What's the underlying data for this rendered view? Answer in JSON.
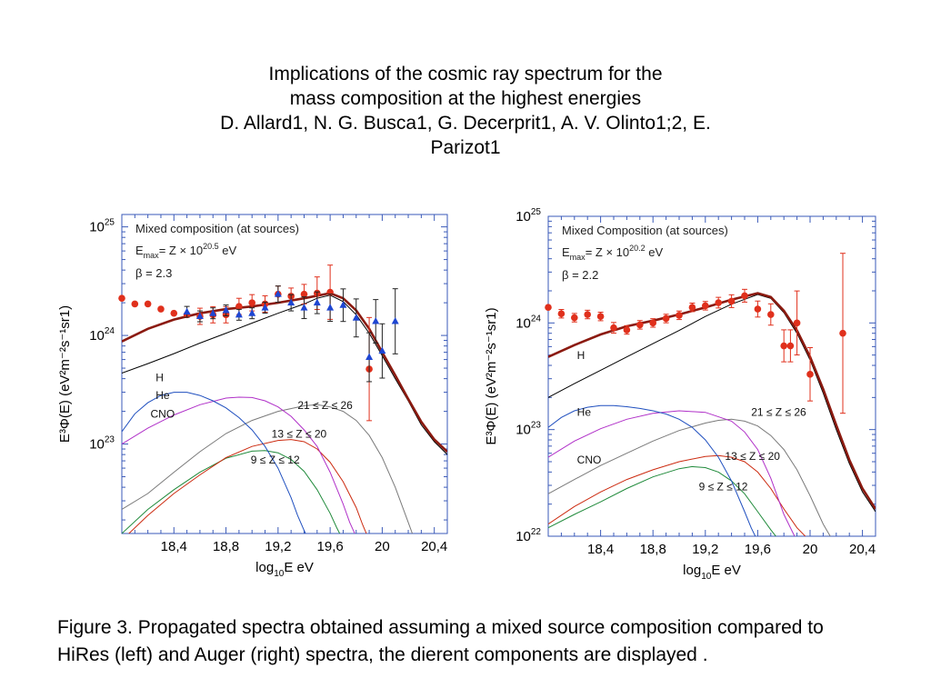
{
  "title": {
    "line1": "Implications of the cosmic ray spectrum for the",
    "line2": "mass composition at the highest energies",
    "line3": "D. Allard1, N. G. Busca1, G. Decerprit1, A. V. Olinto1;2, E.",
    "line4": "Parizot1"
  },
  "caption": "Figure 3. Propagated spectra obtained assuming a mixed source composition compared to HiRes (left) and Auger (right) spectra, the dierent components are displayed .",
  "colors": {
    "total": "#8b1a10",
    "data_red": "#e0301c",
    "data_blue": "#1e46d2",
    "H": "#000000",
    "He": "#1f4fbf",
    "CNO": "#b030c8",
    "Fe": "#7a7a7a",
    "Si": "#cc2a0f",
    "Mg": "#1f8a3a",
    "axis": "#3a5ab8"
  },
  "chart_data": [
    {
      "type": "line",
      "text": {
        "legend1": "Mixed composition (at sources)",
        "emax_prefix": "E",
        "emax_sub": "max",
        "emax_rest": "= Z × 10",
        "emax_exp": "20.5",
        "emax_unit": " eV",
        "beta": "β = 2.3",
        "ylabel": "E³Φ(E) (eV²m⁻²s⁻¹sr1)",
        "xlabel_a": "log",
        "xlabel_sub": "10",
        "xlabel_b": "E eV"
      },
      "xlim": [
        18.0,
        20.5
      ],
      "ylog": true,
      "ylim": [
        1.5e+22,
        1.3e+25
      ],
      "xticks": [
        18.4,
        18.8,
        19.2,
        19.6,
        20.0,
        20.4
      ],
      "xtick_labels": [
        "18,4",
        "18,8",
        "19,2",
        "19,6",
        "20",
        "20,4"
      ],
      "yticks": [
        {
          "base": "10",
          "exp": "23",
          "value": 1e+23
        },
        {
          "base": "10",
          "exp": "24",
          "value": 1e+24
        },
        {
          "base": "10",
          "exp": "25",
          "value": 1e+25
        }
      ],
      "labels": [
        {
          "text": "H",
          "x": 18.26,
          "y": 3.8e+23
        },
        {
          "text": "He",
          "x": 18.26,
          "y": 2.6e+23
        },
        {
          "text": "CNO",
          "x": 18.22,
          "y": 1.75e+23
        },
        {
          "text": "21 ≤ Z ≤ 26",
          "x": 19.35,
          "y": 2.1e+23
        },
        {
          "text": "13 ≤ Z ≤ 20",
          "x": 19.15,
          "y": 1.15e+23
        },
        {
          "text": "9 ≤ Z ≤ 12",
          "x": 18.99,
          "y": 6.6e+22
        }
      ],
      "series": [
        {
          "key": "total",
          "x": [
            18.0,
            18.2,
            18.4,
            18.6,
            18.8,
            19.0,
            19.2,
            19.4,
            19.6,
            19.7,
            19.8,
            19.9,
            20.0,
            20.1,
            20.2,
            20.3,
            20.4,
            20.5
          ],
          "y": [
            8.8e+23,
            1.15e+24,
            1.4e+24,
            1.6e+24,
            1.75e+24,
            1.85e+24,
            2e+24,
            2.2e+24,
            2.45e+24,
            2.2e+24,
            1.7e+24,
            1.15e+24,
            7e+23,
            4.3e+23,
            2.6e+23,
            1.6e+23,
            1.1e+23,
            8.5e+22
          ]
        },
        {
          "key": "H",
          "x": [
            18.0,
            18.2,
            18.4,
            18.6,
            18.8,
            19.0,
            19.2,
            19.4,
            19.5,
            19.6,
            19.7,
            19.8,
            19.9,
            20.0,
            20.1,
            20.2,
            20.3,
            20.4,
            20.5
          ],
          "y": [
            4.5e+23,
            5.5e+23,
            6.8e+23,
            8.5e+23,
            1.05e+24,
            1.3e+24,
            1.6e+24,
            1.95e+24,
            2.2e+24,
            2.35e+24,
            2.05e+24,
            1.55e+24,
            1.05e+24,
            6.5e+23,
            4e+23,
            2.5e+23,
            1.5e+23,
            1.05e+23,
            8e+22
          ]
        },
        {
          "key": "He",
          "x": [
            18.0,
            18.1,
            18.2,
            18.3,
            18.4,
            18.5,
            18.6,
            18.7,
            18.8,
            18.9,
            19.0,
            19.1,
            19.2,
            19.3,
            19.35,
            19.4,
            19.45
          ],
          "y": [
            1.3e+23,
            1.9e+23,
            2.4e+23,
            2.8e+23,
            3e+23,
            3e+23,
            2.8e+23,
            2.5e+23,
            2.15e+23,
            1.75e+23,
            1.35e+23,
            9.5e+22,
            6e+22,
            3.2e+22,
            2.2e+22,
            1.6e+22,
            1.2e+22
          ]
        },
        {
          "key": "CNO",
          "x": [
            18.0,
            18.2,
            18.4,
            18.6,
            18.8,
            18.9,
            19.0,
            19.1,
            19.2,
            19.3,
            19.4,
            19.5,
            19.6,
            19.7,
            19.75,
            19.8
          ],
          "y": [
            1e+23,
            1.4e+23,
            1.85e+23,
            2.3e+23,
            2.65e+23,
            2.7e+23,
            2.68e+23,
            2.5e+23,
            2.2e+23,
            1.8e+23,
            1.35e+23,
            9.5e+22,
            5.5e+22,
            2.8e+22,
            1.9e+22,
            1.4e+22
          ]
        },
        {
          "key": "Fe",
          "x": [
            18.0,
            18.2,
            18.4,
            18.6,
            18.8,
            19.0,
            19.2,
            19.4,
            19.5,
            19.6,
            19.7,
            19.8,
            19.9,
            20.0,
            20.1,
            20.2,
            20.25
          ],
          "y": [
            2.5e+22,
            3.5e+22,
            5.5e+22,
            8.5e+22,
            1.25e+23,
            1.65e+23,
            2e+23,
            2.25e+23,
            2.3e+23,
            2.2e+23,
            2e+23,
            1.65e+23,
            1.2e+23,
            7.5e+22,
            4e+22,
            1.9e+22,
            1.3e+22
          ]
        },
        {
          "key": "Si",
          "x": [
            18.0,
            18.2,
            18.4,
            18.6,
            18.8,
            19.0,
            19.2,
            19.3,
            19.4,
            19.5,
            19.6,
            19.7,
            19.8,
            19.85,
            19.9
          ],
          "y": [
            1.3e+22,
            2.2e+22,
            3.5e+22,
            5.2e+22,
            7.5e+22,
            9.5e+22,
            1.08e+23,
            1.1e+23,
            1.05e+23,
            9e+22,
            6.8e+22,
            4.5e+22,
            2.6e+22,
            1.8e+22,
            1.3e+22
          ]
        },
        {
          "key": "Mg",
          "x": [
            18.0,
            18.2,
            18.4,
            18.6,
            18.8,
            19.0,
            19.1,
            19.2,
            19.3,
            19.4,
            19.5,
            19.6,
            19.65,
            19.7
          ],
          "y": [
            1.5e+22,
            2.5e+22,
            3.8e+22,
            5.5e+22,
            7.4e+22,
            8.6e+22,
            8.7e+22,
            8.3e+22,
            7.2e+22,
            5.6e+22,
            3.8e+22,
            2.3e+22,
            1.7e+22,
            1.3e+22
          ]
        }
      ],
      "points_red": {
        "x": [
          18.0,
          18.1,
          18.2,
          18.3,
          18.4,
          18.5,
          18.6,
          18.7,
          18.8,
          18.9,
          19.0,
          19.1,
          19.2,
          19.3,
          19.4,
          19.5,
          19.6,
          19.9
        ],
        "y": [
          2.2e+24,
          1.95e+24,
          1.95e+24,
          1.75e+24,
          1.6e+24,
          1.55e+24,
          1.5e+24,
          1.55e+24,
          1.55e+24,
          1.85e+24,
          2e+24,
          1.95e+24,
          2.4e+24,
          2.3e+24,
          2.4e+24,
          2.45e+24,
          2.5e+24,
          4.9e+23
        ],
        "err": [
          0,
          0,
          0,
          0,
          0,
          0,
          0.15,
          0.15,
          0.15,
          0.15,
          0.15,
          0.15,
          0.15,
          0.15,
          0.18,
          0.3,
          0.5,
          0.95
        ]
      },
      "points_blue": {
        "x": [
          18.5,
          18.6,
          18.7,
          18.8,
          18.9,
          19.0,
          19.1,
          19.2,
          19.3,
          19.4,
          19.5,
          19.6,
          19.7,
          19.8,
          19.9,
          19.95,
          20.0,
          20.1
        ],
        "y": [
          1.65e+24,
          1.5e+24,
          1.6e+24,
          1.7e+24,
          1.55e+24,
          1.6e+24,
          1.8e+24,
          2.4e+24,
          2e+24,
          1.8e+24,
          2e+24,
          1.8e+24,
          1.9e+24,
          1.45e+24,
          6.3e+23,
          1.35e+24,
          7.2e+23,
          1.35e+24
        ],
        "err": [
          0.1,
          0.1,
          0.1,
          0.1,
          0.1,
          0.1,
          0.1,
          0.15,
          0.15,
          0.2,
          0.2,
          0.25,
          0.3,
          0.35,
          0.45,
          0.4,
          0.5,
          0.6
        ]
      }
    },
    {
      "type": "line",
      "text": {
        "legend1": "Mixed Composition (at sources)",
        "emax_prefix": "E",
        "emax_sub": "max",
        "emax_rest": "= Z × 10",
        "emax_exp": "20.2",
        "emax_unit": " eV",
        "beta": "β = 2.2",
        "ylabel": "E³Φ(E) (eV²m⁻²s⁻¹sr1)",
        "xlabel_a": "log",
        "xlabel_sub": "10",
        "xlabel_b": "E eV"
      },
      "xlim": [
        18.0,
        20.5
      ],
      "ylog": true,
      "ylim": [
        1e+22,
        1e+25
      ],
      "xticks": [
        18.4,
        18.8,
        19.2,
        19.6,
        20.0,
        20.4
      ],
      "xtick_labels": [
        "18,4",
        "18,8",
        "19,2",
        "19,6",
        "20",
        "20,4"
      ],
      "yticks": [
        {
          "base": "10",
          "exp": "22",
          "value": 1e+22
        },
        {
          "base": "10",
          "exp": "23",
          "value": 1e+23
        },
        {
          "base": "10",
          "exp": "24",
          "value": 1e+24
        },
        {
          "base": "10",
          "exp": "25",
          "value": 1e+25
        }
      ],
      "labels": [
        {
          "text": "H",
          "x": 18.22,
          "y": 4.6e+23
        },
        {
          "text": "He",
          "x": 18.22,
          "y": 1.35e+23
        },
        {
          "text": "CNO",
          "x": 18.22,
          "y": 4.8e+22
        },
        {
          "text": "21 ≤ Z ≤ 26",
          "x": 19.55,
          "y": 1.35e+23
        },
        {
          "text": "13 ≤ Z ≤ 20",
          "x": 19.35,
          "y": 5.2e+22
        },
        {
          "text": "9 ≤ Z ≤ 12",
          "x": 19.15,
          "y": 2.7e+22
        }
      ],
      "series": [
        {
          "key": "total",
          "x": [
            18.0,
            18.2,
            18.4,
            18.6,
            18.8,
            19.0,
            19.2,
            19.4,
            19.6,
            19.7,
            19.8,
            19.9,
            20.0,
            20.1,
            20.2,
            20.3,
            20.4,
            20.5
          ],
          "y": [
            4.8e+23,
            6.2e+23,
            7.8e+23,
            9.3e+23,
            1.05e+24,
            1.2e+24,
            1.4e+24,
            1.65e+24,
            1.9e+24,
            1.75e+24,
            1.3e+24,
            8.5e+23,
            4.8e+23,
            2.4e+23,
            1.1e+23,
            5.2e+22,
            2.8e+22,
            1.8e+22
          ]
        },
        {
          "key": "H",
          "x": [
            18.0,
            18.2,
            18.4,
            18.6,
            18.8,
            19.0,
            19.2,
            19.4,
            19.6,
            19.7,
            19.8,
            19.9,
            20.0,
            20.1,
            20.2,
            20.3,
            20.4,
            20.5
          ],
          "y": [
            2e+23,
            2.7e+23,
            3.6e+23,
            4.8e+23,
            6.4e+23,
            8.5e+23,
            1.15e+24,
            1.5e+24,
            1.85e+24,
            1.7e+24,
            1.25e+24,
            8e+23,
            4.5e+23,
            2.2e+23,
            1e+23,
            4.8e+22,
            2.6e+22,
            1.7e+22
          ]
        },
        {
          "key": "He",
          "x": [
            18.0,
            18.1,
            18.2,
            18.3,
            18.4,
            18.5,
            18.6,
            18.7,
            18.8,
            18.9,
            19.0,
            19.1,
            19.2,
            19.3,
            19.4,
            19.5,
            19.55,
            19.6
          ],
          "y": [
            1.05e+23,
            1.3e+23,
            1.5e+23,
            1.62e+23,
            1.68e+23,
            1.68e+23,
            1.64e+23,
            1.58e+23,
            1.5e+23,
            1.4e+23,
            1.25e+23,
            1.05e+23,
            8e+22,
            5.5e+22,
            3.3e+22,
            1.7e+22,
            1.2e+22,
            9e+21
          ]
        },
        {
          "key": "CNO",
          "x": [
            18.0,
            18.2,
            18.4,
            18.6,
            18.8,
            19.0,
            19.2,
            19.4,
            19.5,
            19.6,
            19.7,
            19.8,
            19.9
          ],
          "y": [
            5.5e+22,
            7.8e+22,
            1.02e+23,
            1.25e+23,
            1.42e+23,
            1.5e+23,
            1.45e+23,
            1.2e+23,
            9.5e+22,
            6.5e+22,
            3.5e+22,
            1.6e+22,
            9e+21
          ]
        },
        {
          "key": "Fe",
          "x": [
            18.0,
            18.2,
            18.4,
            18.6,
            18.8,
            19.0,
            19.2,
            19.3,
            19.4,
            19.5,
            19.6,
            19.7,
            19.8,
            19.9,
            20.0,
            20.1,
            20.2
          ],
          "y": [
            2.5e+22,
            3.4e+22,
            4.6e+22,
            6e+22,
            7.8e+22,
            9.8e+22,
            1.15e+23,
            1.22e+23,
            1.25e+23,
            1.2e+23,
            1.08e+23,
            8.8e+22,
            6.5e+22,
            4.2e+22,
            2.4e+22,
            1.3e+22,
            8e+21
          ]
        },
        {
          "key": "Si",
          "x": [
            18.0,
            18.2,
            18.4,
            18.6,
            18.8,
            19.0,
            19.2,
            19.3,
            19.4,
            19.5,
            19.6,
            19.7,
            19.8,
            19.9,
            20.0
          ],
          "y": [
            1.3e+22,
            1.9e+22,
            2.6e+22,
            3.4e+22,
            4.2e+22,
            5e+22,
            5.6e+22,
            5.7e+22,
            5.5e+22,
            5e+22,
            4e+22,
            2.8e+22,
            1.8e+22,
            1.2e+22,
            9e+21
          ]
        },
        {
          "key": "Mg",
          "x": [
            18.0,
            18.2,
            18.4,
            18.6,
            18.8,
            19.0,
            19.1,
            19.2,
            19.3,
            19.4,
            19.5,
            19.6,
            19.7,
            19.8
          ],
          "y": [
            1.2e+22,
            1.6e+22,
            2.1e+22,
            2.8e+22,
            3.6e+22,
            4.3e+22,
            4.5e+22,
            4.4e+22,
            4e+22,
            3.3e+22,
            2.5e+22,
            1.7e+22,
            1.15e+22,
            8e+21
          ]
        }
      ],
      "points_red": {
        "x": [
          18.0,
          18.1,
          18.2,
          18.3,
          18.4,
          18.5,
          18.6,
          18.7,
          18.8,
          18.9,
          19.0,
          19.1,
          19.2,
          19.3,
          19.4,
          19.5,
          19.6,
          19.7,
          19.8,
          19.85,
          19.9,
          20.0,
          20.25
        ],
        "y": [
          1.4e+24,
          1.22e+24,
          1.12e+24,
          1.2e+24,
          1.15e+24,
          9e+23,
          8.6e+23,
          9.6e+23,
          1e+24,
          1.1e+24,
          1.18e+24,
          1.4e+24,
          1.45e+24,
          1.55e+24,
          1.6e+24,
          1.8e+24,
          1.35e+24,
          1.2e+24,
          6.1e+23,
          6.1e+23,
          1e+24,
          3.3e+23,
          8e+23
        ],
        "err": [
          0,
          0.08,
          0.08,
          0.08,
          0.08,
          0.1,
          0.08,
          0.08,
          0.08,
          0.08,
          0.08,
          0.08,
          0.08,
          0.1,
          0.12,
          0.12,
          0.15,
          0.2,
          0.3,
          0.3,
          0.6,
          0.5,
          1.5
        ]
      }
    }
  ]
}
